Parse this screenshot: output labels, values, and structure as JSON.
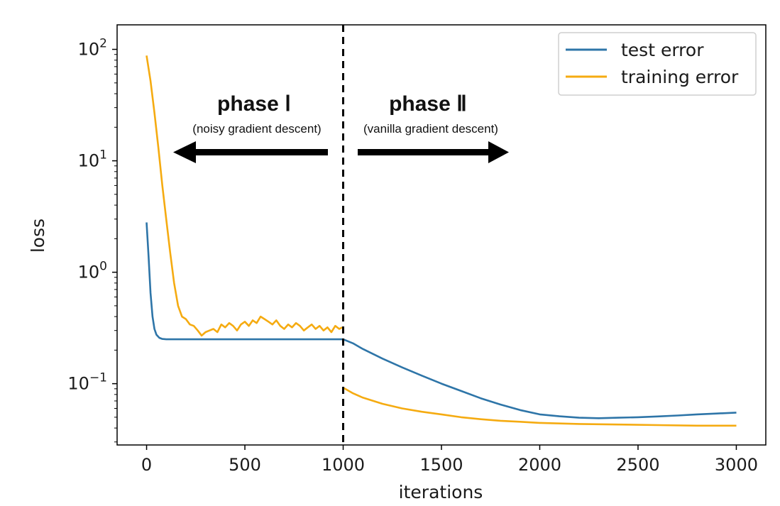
{
  "chart_data": {
    "type": "line",
    "xlabel": "iterations",
    "ylabel": "loss",
    "yscale": "log",
    "xlim": [
      -150,
      3150
    ],
    "ylim_log10": [
      -1.55,
      2.22
    ],
    "xticks": [
      0,
      500,
      1000,
      1500,
      2000,
      2500,
      3000
    ],
    "xtick_labels": [
      "0",
      "500",
      "1000",
      "1500",
      "2000",
      "2500",
      "3000"
    ],
    "yticks": [
      {
        "base": "10",
        "exp": "2",
        "value": 100
      },
      {
        "base": "10",
        "exp": "1",
        "value": 10
      },
      {
        "base": "10",
        "exp": "0",
        "value": 1
      },
      {
        "base": "10",
        "exp": "−1",
        "value": 0.1
      }
    ],
    "grid": false,
    "legend_position": "top-right",
    "series": [
      {
        "name": "test error",
        "color": "#2e75a8",
        "points": [
          [
            0,
            2.8
          ],
          [
            10,
            1.4
          ],
          [
            20,
            0.65
          ],
          [
            30,
            0.4
          ],
          [
            40,
            0.31
          ],
          [
            50,
            0.275
          ],
          [
            65,
            0.258
          ],
          [
            80,
            0.252
          ],
          [
            100,
            0.25
          ],
          [
            200,
            0.25
          ],
          [
            500,
            0.25
          ],
          [
            800,
            0.25
          ],
          [
            1000,
            0.25
          ],
          [
            1050,
            0.23
          ],
          [
            1100,
            0.205
          ],
          [
            1200,
            0.168
          ],
          [
            1300,
            0.14
          ],
          [
            1400,
            0.118
          ],
          [
            1500,
            0.1
          ],
          [
            1600,
            0.086
          ],
          [
            1700,
            0.074
          ],
          [
            1800,
            0.065
          ],
          [
            1900,
            0.058
          ],
          [
            2000,
            0.053
          ],
          [
            2100,
            0.051
          ],
          [
            2200,
            0.0495
          ],
          [
            2300,
            0.049
          ],
          [
            2400,
            0.0495
          ],
          [
            2500,
            0.05
          ],
          [
            2600,
            0.0508
          ],
          [
            2700,
            0.0518
          ],
          [
            2800,
            0.053
          ],
          [
            2900,
            0.054
          ],
          [
            3000,
            0.055
          ]
        ]
      },
      {
        "name": "training error",
        "color": "#f5ab11",
        "points": [
          [
            0,
            88
          ],
          [
            20,
            52
          ],
          [
            40,
            27
          ],
          [
            60,
            13
          ],
          [
            80,
            6
          ],
          [
            100,
            3
          ],
          [
            120,
            1.5
          ],
          [
            140,
            0.8
          ],
          [
            160,
            0.5
          ],
          [
            180,
            0.4
          ],
          [
            200,
            0.38
          ],
          [
            220,
            0.34
          ],
          [
            240,
            0.33
          ],
          [
            260,
            0.3
          ],
          [
            280,
            0.27
          ],
          [
            300,
            0.29
          ],
          [
            320,
            0.3
          ],
          [
            340,
            0.31
          ],
          [
            360,
            0.29
          ],
          [
            380,
            0.34
          ],
          [
            400,
            0.32
          ],
          [
            420,
            0.35
          ],
          [
            440,
            0.33
          ],
          [
            460,
            0.3
          ],
          [
            480,
            0.34
          ],
          [
            500,
            0.36
          ],
          [
            520,
            0.33
          ],
          [
            540,
            0.37
          ],
          [
            560,
            0.35
          ],
          [
            580,
            0.4
          ],
          [
            600,
            0.38
          ],
          [
            620,
            0.36
          ],
          [
            640,
            0.34
          ],
          [
            660,
            0.37
          ],
          [
            680,
            0.33
          ],
          [
            700,
            0.31
          ],
          [
            720,
            0.34
          ],
          [
            740,
            0.32
          ],
          [
            760,
            0.35
          ],
          [
            780,
            0.33
          ],
          [
            800,
            0.3
          ],
          [
            820,
            0.32
          ],
          [
            840,
            0.34
          ],
          [
            860,
            0.31
          ],
          [
            880,
            0.33
          ],
          [
            900,
            0.3
          ],
          [
            920,
            0.32
          ],
          [
            940,
            0.29
          ],
          [
            960,
            0.33
          ],
          [
            980,
            0.31
          ],
          [
            995,
            0.32
          ],
          null,
          [
            1000,
            0.092
          ],
          [
            1050,
            0.082
          ],
          [
            1100,
            0.075
          ],
          [
            1200,
            0.066
          ],
          [
            1300,
            0.06
          ],
          [
            1400,
            0.056
          ],
          [
            1500,
            0.053
          ],
          [
            1600,
            0.05
          ],
          [
            1700,
            0.048
          ],
          [
            1800,
            0.0465
          ],
          [
            1900,
            0.0455
          ],
          [
            2000,
            0.0445
          ],
          [
            2200,
            0.0435
          ],
          [
            2400,
            0.043
          ],
          [
            2600,
            0.0425
          ],
          [
            2800,
            0.042
          ],
          [
            3000,
            0.042
          ]
        ]
      }
    ],
    "annotations": {
      "divider_x": 1000,
      "phase1_title": "phase Ⅰ",
      "phase1_subtitle": "(noisy gradient descent)",
      "phase2_title": "phase Ⅱ",
      "phase2_subtitle": "(vanilla gradient descent)"
    }
  }
}
